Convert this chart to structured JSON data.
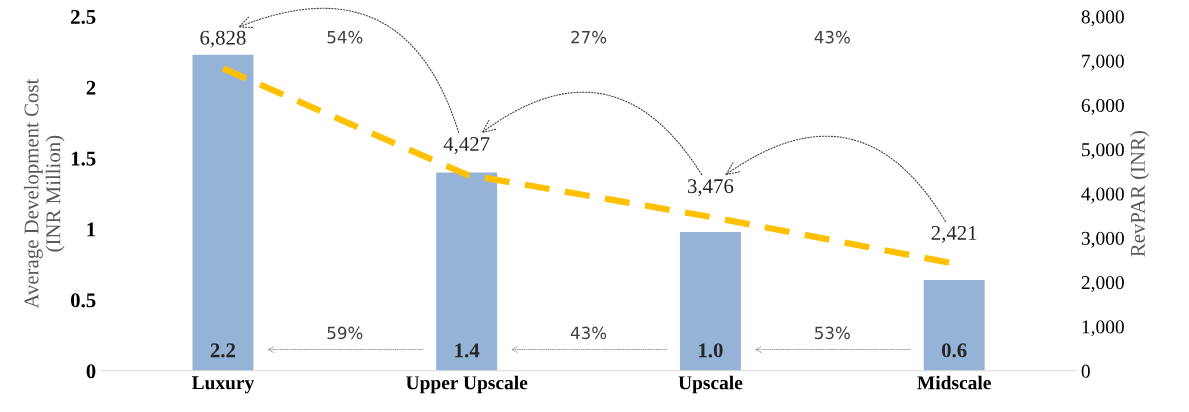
{
  "chart_data": {
    "type": "bar",
    "categories": [
      "Luxury",
      "Upper Upscale",
      "Upscale",
      "Midscale"
    ],
    "ylabel": "Average Development Cost\n(INR Million)",
    "y2label": "RevPAR (INR)",
    "ylim": [
      0,
      2.5
    ],
    "yticks": [
      0,
      0.5,
      1,
      1.5,
      2,
      2.5
    ],
    "y2lim": [
      0,
      8000
    ],
    "y2ticks": [
      {
        "value": 0,
        "label": "0"
      },
      {
        "value": 1000,
        "label": "1,000"
      },
      {
        "value": 2000,
        "label": "2,000"
      },
      {
        "value": 3000,
        "label": "3,000"
      },
      {
        "value": 4000,
        "label": "4,000"
      },
      {
        "value": 5000,
        "label": "5,000"
      },
      {
        "value": 6000,
        "label": "6,000"
      },
      {
        "value": 7000,
        "label": "7,000"
      },
      {
        "value": 8000,
        "label": "8,000"
      }
    ],
    "series": [
      {
        "color": "#95b3d7",
        "values": [
          2.23,
          1.4,
          0.98,
          0.64
        ],
        "value_labels": [
          "2.2",
          "1.4",
          "1.0",
          "0.6"
        ]
      },
      {
        "type": "line",
        "axis": "y2",
        "color": "#ffc000",
        "line_style": "dashed",
        "marker": "none",
        "values": [
          6828,
          4427,
          3476,
          2421
        ],
        "value_labels": [
          "6,828",
          "4,427",
          "3,476",
          "2,421"
        ]
      }
    ],
    "annotations": [
      "54%",
      "27%",
      "43%",
      "59%",
      "43%",
      "53%"
    ],
    "grid": false,
    "legend": false
  }
}
